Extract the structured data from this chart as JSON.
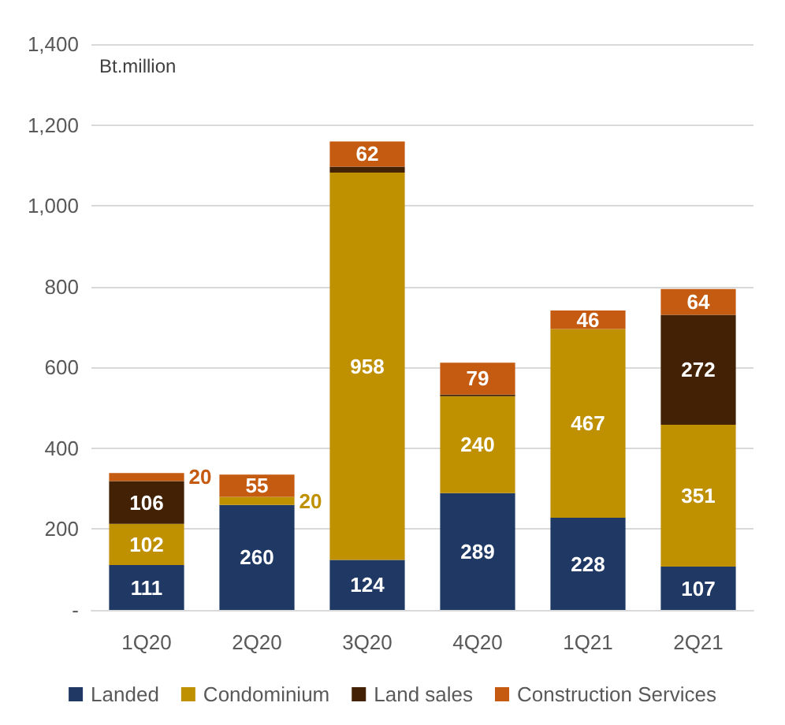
{
  "chart_data": {
    "type": "bar",
    "stacked": true,
    "ylabel": "Bt.million",
    "categories": [
      "1Q20",
      "2Q20",
      "3Q20",
      "4Q20",
      "1Q21",
      "2Q21"
    ],
    "series": [
      {
        "name": "Landed",
        "color": "#1f3864",
        "values": [
          111,
          260,
          124,
          289,
          228,
          107
        ],
        "value_labels": [
          "111",
          "260",
          "124",
          "289",
          "228",
          "107"
        ]
      },
      {
        "name": "Condominium",
        "color": "#bf9000",
        "values": [
          102,
          20,
          958,
          240,
          467,
          351
        ],
        "value_labels": [
          "102",
          "20",
          "958",
          "240",
          "467",
          "351"
        ]
      },
      {
        "name": "Land sales",
        "color": "#432104",
        "values": [
          106,
          null,
          15,
          4,
          null,
          272
        ],
        "value_labels": [
          "106",
          null,
          null,
          null,
          null,
          "272"
        ]
      },
      {
        "name": "Construction Services",
        "color": "#c55a11",
        "values": [
          20,
          55,
          62,
          79,
          46,
          64
        ],
        "value_labels": [
          "20",
          "55",
          "62",
          "79",
          "46",
          "64"
        ]
      }
    ],
    "ylim": [
      0,
      1400
    ],
    "yticks": [
      {
        "value": 0,
        "label": "-"
      },
      200,
      400,
      600,
      800,
      {
        "value": 1000,
        "label": "1,000"
      },
      {
        "value": 1200,
        "label": "1,200"
      },
      {
        "value": 1400,
        "label": "1,400"
      }
    ],
    "grid": "y",
    "legend": "bottom"
  }
}
